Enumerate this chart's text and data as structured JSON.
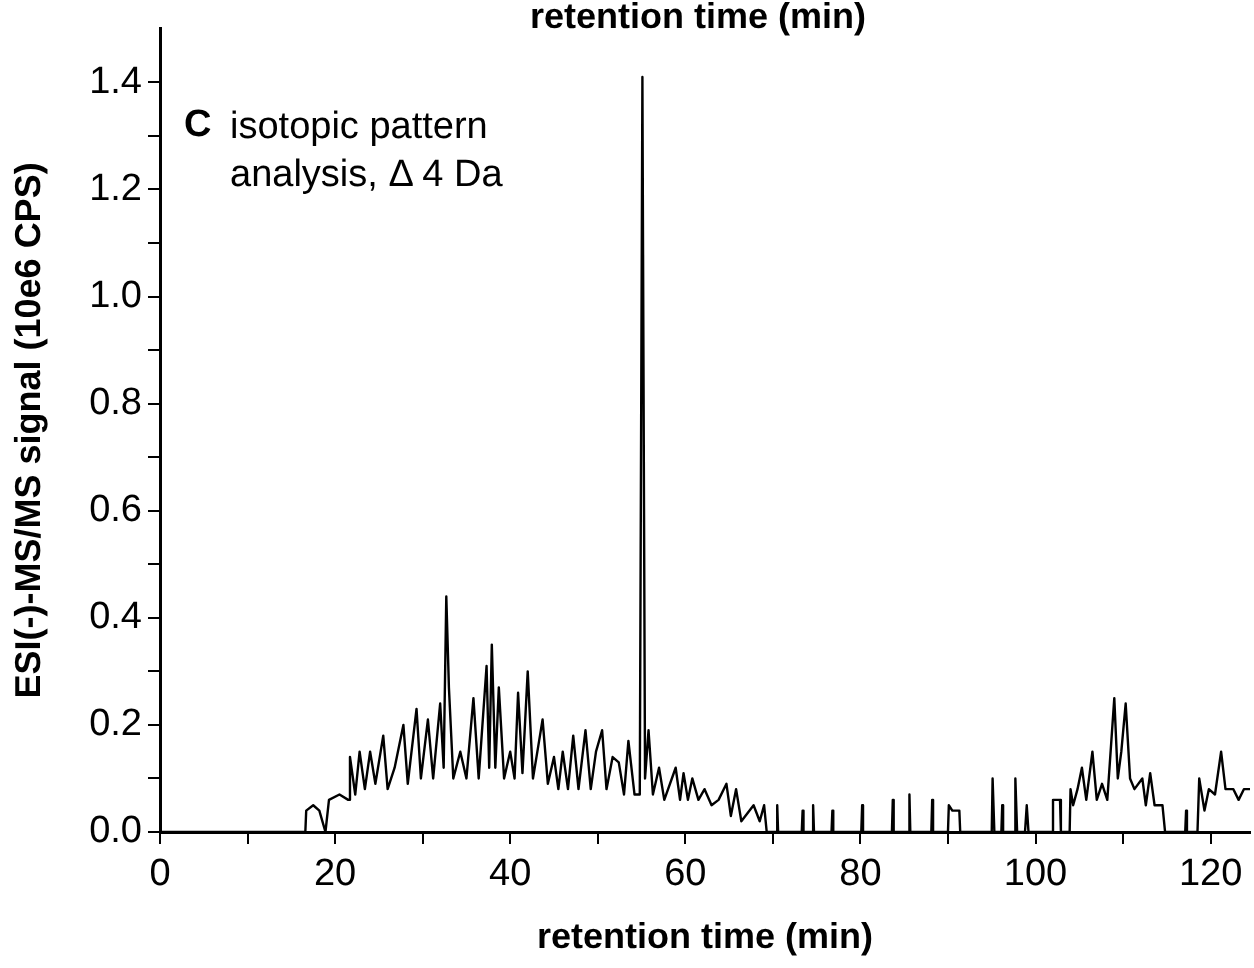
{
  "chart_data": {
    "type": "line",
    "xlabel": "retention time (min)",
    "ylabel": "ESI(-)-MS/MS signal (10e6 CPS)",
    "annotations": [
      "retention time (min)",
      "C",
      "isotopic pattern analysis, Δ 4 Da"
    ],
    "xlim": [
      0,
      124.5
    ],
    "xticks": [
      0,
      {
        "value": 10,
        "label": null
      },
      20,
      {
        "value": 30,
        "label": null
      },
      40,
      {
        "value": 50,
        "label": null
      },
      60,
      {
        "value": 70,
        "label": null
      },
      80,
      {
        "value": 90,
        "label": null
      },
      100,
      {
        "value": 110,
        "label": null
      },
      120
    ],
    "ylim": [
      0,
      1.5
    ],
    "yticks": [
      {
        "value": 0,
        "label": "0.0"
      },
      {
        "value": 0.1,
        "label": null
      },
      {
        "value": 0.2,
        "label": "0.2"
      },
      {
        "value": 0.3,
        "label": null
      },
      {
        "value": 0.4,
        "label": "0.4"
      },
      {
        "value": 0.5,
        "label": null
      },
      {
        "value": 0.6,
        "label": "0.6"
      },
      {
        "value": 0.7,
        "label": null
      },
      {
        "value": 0.8,
        "label": "0.8"
      },
      {
        "value": 0.9,
        "label": null
      },
      {
        "value": 1,
        "label": "1.0"
      },
      {
        "value": 1.1,
        "label": null
      },
      {
        "value": 1.2,
        "label": "1.2"
      },
      {
        "value": 1.3,
        "label": null
      },
      {
        "value": 1.4,
        "label": "1.4"
      }
    ],
    "grid": false,
    "legend": false,
    "marker": "none",
    "line_style": "solid",
    "series": [
      {
        "color": "#000000",
        "x": [
          0,
          16.6,
          16.7,
          17.5,
          18.2,
          18.9,
          19.3,
          20.5,
          21.5,
          21.7,
          22.3,
          22.8,
          23.4,
          24,
          24.6,
          25.5,
          26,
          26.8,
          27.8,
          28.3,
          29.3,
          29.8,
          30.6,
          31.2,
          32,
          32.4,
          32.7,
          33,
          33.5,
          34.3,
          35,
          35.8,
          36.4,
          37.3,
          37.6,
          37.9,
          38.3,
          38.7,
          39.3,
          40,
          40.5,
          40.9,
          41.4,
          42,
          42.6,
          43.2,
          43.7,
          44.3,
          45,
          45.5,
          46,
          46.6,
          47.2,
          47.8,
          48.6,
          49.2,
          49.8,
          50.5,
          51,
          51.7,
          52.4,
          53,
          53.5,
          54.2,
          54.8,
          55.1,
          55.4,
          55.8,
          56.3,
          57,
          57.6,
          58.9,
          59.4,
          59.8,
          60.3,
          60.8,
          61.5,
          62.2,
          63,
          63.8,
          64.7,
          65.2,
          65.8,
          66.4,
          67.8,
          68.5,
          69,
          69.3,
          70.4,
          70.5,
          70.6,
          73.3,
          73.4,
          73.5,
          74.5,
          74.6,
          74.7,
          76.7,
          76.8,
          76.9,
          80.1,
          80.2,
          80.3,
          83.6,
          83.7,
          83.8,
          85.5,
          85.6,
          85.7,
          88.1,
          88.2,
          88.3,
          90,
          90.1,
          90.5,
          91.3,
          91.4,
          95,
          95.1,
          95.3,
          96.1,
          96.2,
          96.3,
          97.6,
          97.7,
          97.9,
          98.8,
          99,
          99.2,
          101.9,
          102,
          102.8,
          102.9,
          103.9,
          104,
          104.3,
          104.8,
          105.3,
          105.8,
          106.5,
          107,
          107.6,
          108.2,
          109,
          109.4,
          109.8,
          110.3,
          110.8,
          111.3,
          112.2,
          112.6,
          113.1,
          113.6,
          114.5,
          114.8,
          117.1,
          117.2,
          117.3,
          118.5,
          118.7,
          119.3,
          119.8,
          120.5,
          121.2,
          121.7,
          122.6,
          123.2,
          123.8,
          124.5
        ],
        "values": [
          0,
          0,
          0.04,
          0.05,
          0.04,
          0,
          0.06,
          0.07,
          0.06,
          0.14,
          0.07,
          0.15,
          0.08,
          0.15,
          0.09,
          0.18,
          0.08,
          0.12,
          0.2,
          0.09,
          0.23,
          0.1,
          0.21,
          0.1,
          0.24,
          0.12,
          0.44,
          0.27,
          0.1,
          0.15,
          0.1,
          0.25,
          0.1,
          0.31,
          0.12,
          0.35,
          0.12,
          0.27,
          0.1,
          0.15,
          0.1,
          0.26,
          0.11,
          0.3,
          0.1,
          0.16,
          0.21,
          0.09,
          0.14,
          0.08,
          0.15,
          0.08,
          0.18,
          0.08,
          0.19,
          0.08,
          0.15,
          0.19,
          0.08,
          0.14,
          0.13,
          0.07,
          0.17,
          0.07,
          0.07,
          1.41,
          0.1,
          0.19,
          0.07,
          0.12,
          0.06,
          0.12,
          0.06,
          0.11,
          0.06,
          0.1,
          0.06,
          0.08,
          0.05,
          0.06,
          0.09,
          0.03,
          0.08,
          0.02,
          0.05,
          0.02,
          0.05,
          0,
          0,
          0.05,
          0,
          0,
          0.04,
          0,
          0,
          0.05,
          0,
          0,
          0.04,
          0,
          0,
          0.05,
          0,
          0,
          0.06,
          0,
          0,
          0.07,
          0,
          0,
          0.06,
          0,
          0,
          0.05,
          0.04,
          0.04,
          0,
          0,
          0.1,
          0,
          0,
          0.05,
          0,
          0,
          0.1,
          0,
          0,
          0.05,
          0,
          0,
          0.06,
          0.06,
          0,
          0,
          0.08,
          0.05,
          0.08,
          0.12,
          0.06,
          0.15,
          0.06,
          0.09,
          0.06,
          0.25,
          0.1,
          0.15,
          0.24,
          0.1,
          0.08,
          0.1,
          0.05,
          0.11,
          0.05,
          0.05,
          0,
          0,
          0.04,
          0,
          0,
          0.1,
          0.04,
          0.08,
          0.07,
          0.15,
          0.08,
          0.08,
          0.06,
          0.08,
          0.08
        ]
      }
    ]
  }
}
